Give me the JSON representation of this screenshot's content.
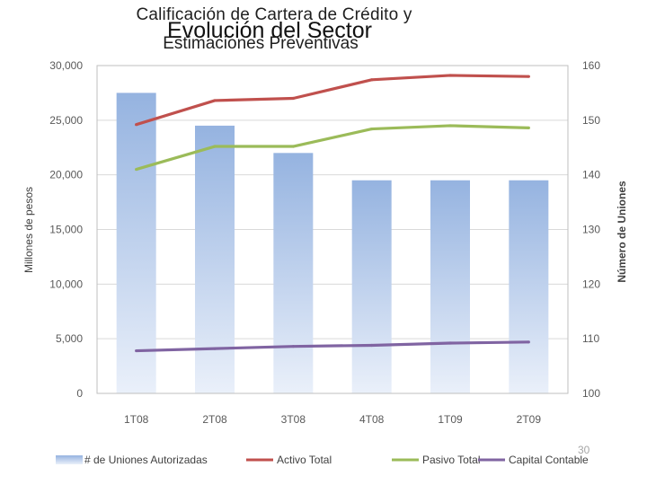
{
  "slide": {
    "title_line1": "Calificación de Cartera de Crédito y",
    "title_overlay": "Evolución del Sector",
    "title_line2": "Estimaciones Preventivas",
    "page_number": "30"
  },
  "colors": {
    "bars_top": "#95b3e0",
    "bars_bottom": "#eaf0fa",
    "activo": "#c0504d",
    "pasivo": "#9bbb59",
    "capital": "#8064a2",
    "grid": "#d9d9d9"
  },
  "chart_data": {
    "type": "bar",
    "categories": [
      "1T08",
      "2T08",
      "3T08",
      "4T08",
      "1T09",
      "2T09"
    ],
    "ylabel": "Millones de pesos",
    "y2label": "Número de Uniones",
    "ylim": [
      0,
      30000
    ],
    "y2lim": [
      100,
      160
    ],
    "yticks": [
      "0",
      "5,000",
      "10,000",
      "15,000",
      "20,000",
      "25,000",
      "30,000"
    ],
    "y2ticks": [
      "100",
      "110",
      "120",
      "130",
      "140",
      "150",
      "160"
    ],
    "bars": {
      "name": "# de Uniones Autorizadas",
      "axis": "right",
      "values": [
        155,
        149,
        144,
        139,
        139,
        139
      ]
    },
    "series": [
      {
        "name": "Activo Total",
        "key": "activo",
        "values": [
          24600,
          26800,
          27000,
          28700,
          29100,
          29000
        ]
      },
      {
        "name": "Pasivo Total",
        "key": "pasivo",
        "values": [
          20500,
          22600,
          22600,
          24200,
          24500,
          24300
        ]
      },
      {
        "name": "Capital Contable",
        "key": "capital",
        "values": [
          3900,
          4100,
          4300,
          4400,
          4600,
          4700
        ]
      }
    ]
  }
}
